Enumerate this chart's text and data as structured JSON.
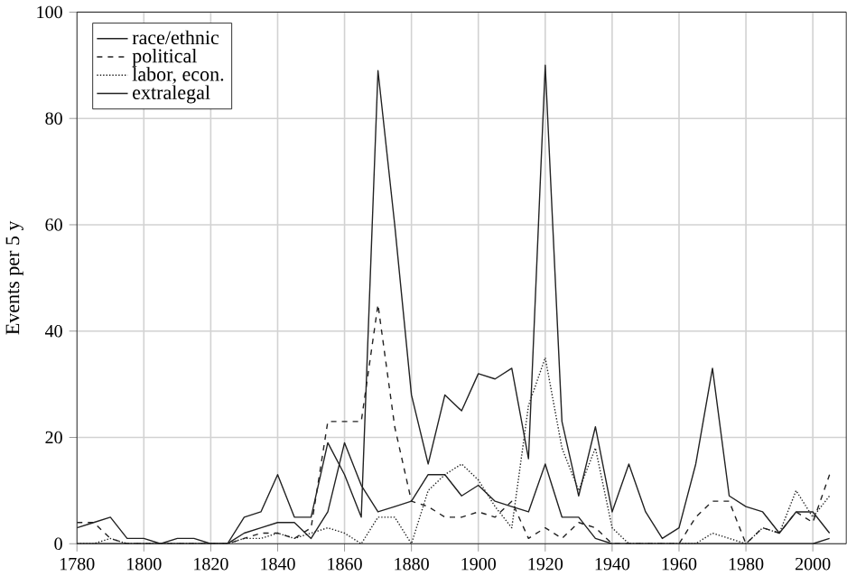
{
  "chart_data": {
    "type": "line",
    "ylabel": "Events per 5 y",
    "x": [
      1780,
      1785,
      1790,
      1795,
      1800,
      1805,
      1810,
      1815,
      1820,
      1825,
      1830,
      1835,
      1840,
      1845,
      1850,
      1855,
      1860,
      1865,
      1870,
      1875,
      1880,
      1885,
      1890,
      1895,
      1900,
      1905,
      1910,
      1915,
      1920,
      1925,
      1930,
      1935,
      1940,
      1945,
      1950,
      1955,
      1960,
      1965,
      1970,
      1975,
      1980,
      1985,
      1990,
      1995,
      2000,
      2005
    ],
    "series": [
      {
        "name": "race/ethnic",
        "color": "#222222",
        "line_style": "solid",
        "values": [
          3,
          4,
          5,
          1,
          1,
          0,
          1,
          1,
          0,
          0,
          5,
          6,
          13,
          5,
          5,
          19,
          13,
          5,
          89,
          60,
          28,
          15,
          28,
          25,
          32,
          31,
          33,
          16,
          90,
          23,
          9,
          22,
          6,
          15,
          6,
          1,
          3,
          15,
          33,
          9,
          7,
          6,
          2,
          6,
          6,
          2
        ]
      },
      {
        "name": "political",
        "color": "#222222",
        "line_style": "dashed",
        "values": [
          4,
          4,
          1,
          0,
          0,
          0,
          0,
          0,
          0,
          0,
          1,
          2,
          2,
          1,
          3,
          23,
          23,
          23,
          45,
          22,
          8,
          7,
          5,
          5,
          6,
          5,
          8,
          1,
          3,
          1,
          4,
          3,
          0,
          0,
          0,
          0,
          0,
          5,
          8,
          8,
          0,
          3,
          2,
          6,
          4,
          13
        ]
      },
      {
        "name": "labor, econ.",
        "color": "#222222",
        "line_style": "dotted",
        "values": [
          0,
          0,
          1,
          0,
          0,
          0,
          0,
          0,
          0,
          0,
          1,
          1,
          2,
          1,
          2,
          3,
          2,
          0,
          5,
          5,
          0,
          10,
          13,
          15,
          12,
          7,
          3,
          26,
          35,
          18,
          10,
          18,
          3,
          0,
          0,
          0,
          0,
          0,
          2,
          1,
          0,
          3,
          2,
          10,
          5,
          9
        ]
      },
      {
        "name": "extralegal",
        "color": "#222222",
        "line_style": "solid",
        "values": [
          0,
          0,
          0,
          0,
          0,
          0,
          0,
          0,
          0,
          0,
          2,
          3,
          4,
          4,
          1,
          6,
          19,
          11,
          6,
          7,
          8,
          13,
          13,
          9,
          11,
          8,
          7,
          6,
          15,
          5,
          5,
          1,
          0,
          0,
          0,
          0,
          0,
          0,
          0,
          0,
          0,
          0,
          0,
          0,
          0,
          1
        ]
      }
    ],
    "xlim": [
      1780,
      2010
    ],
    "ylim": [
      0,
      100
    ],
    "xticks": [
      1780,
      1800,
      1820,
      1840,
      1860,
      1880,
      1900,
      1920,
      1940,
      1960,
      1980,
      2000
    ],
    "yticks": [
      0,
      20,
      40,
      60,
      80,
      100
    ],
    "grid": true,
    "legend": "top left"
  }
}
